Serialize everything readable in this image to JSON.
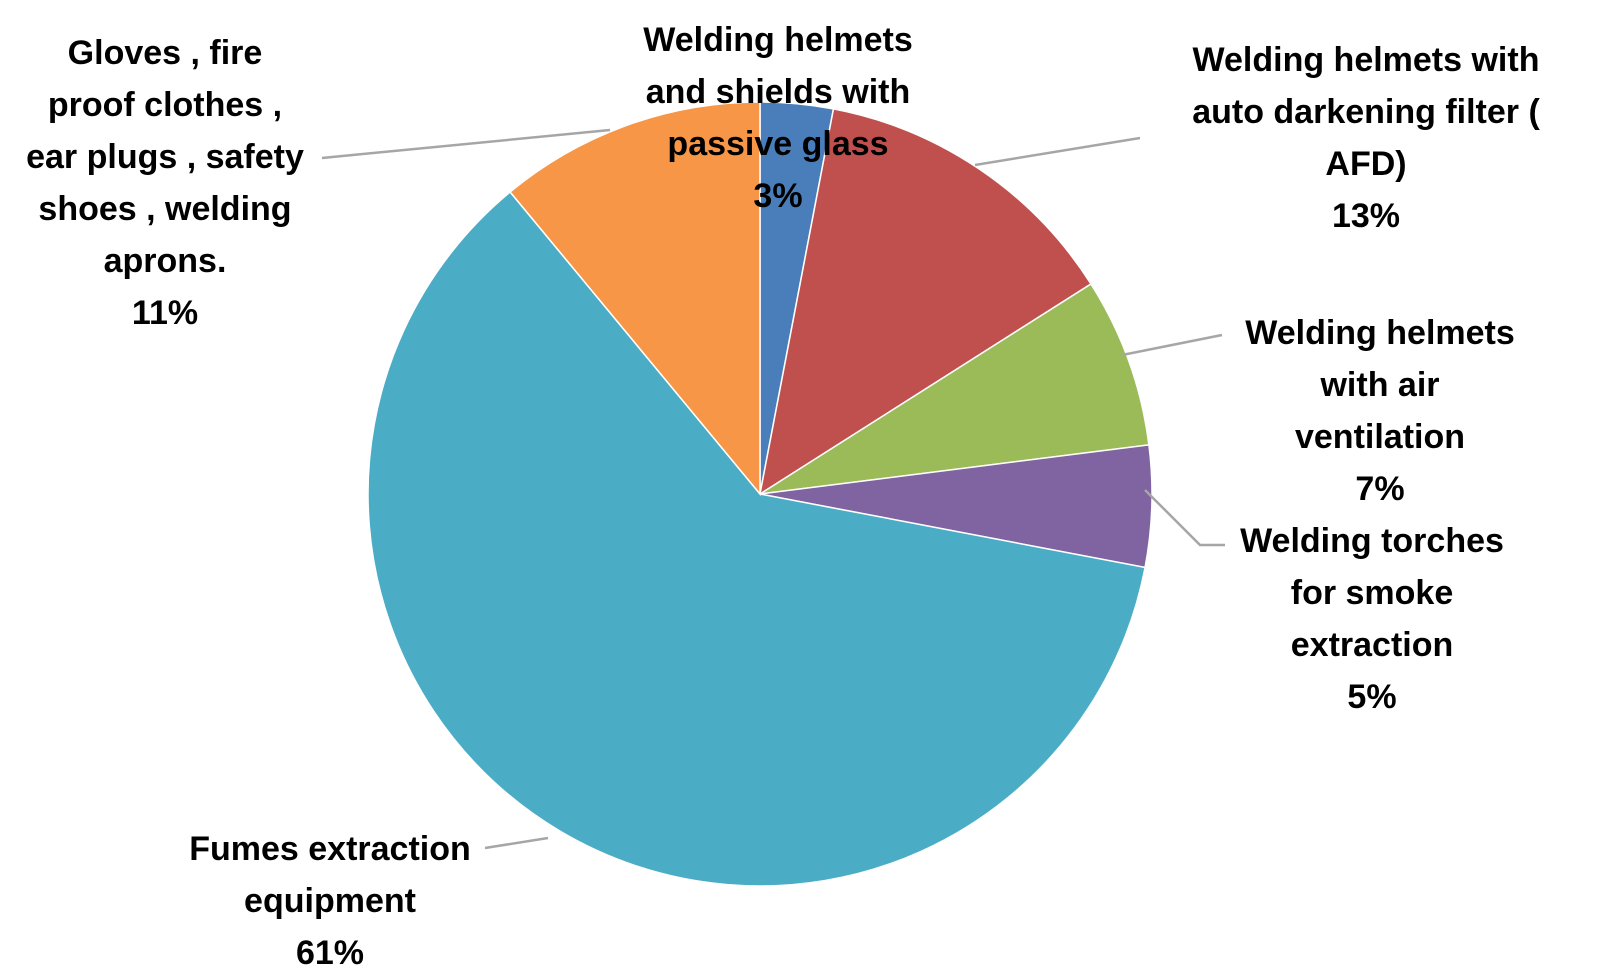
{
  "chart_data": {
    "type": "pie",
    "title": "",
    "start_angle_deg": 0,
    "direction": "clockwise",
    "legend": "none (data labels beside slices)",
    "slices": [
      {
        "lines": [
          "Welding helmets",
          "and shields with",
          "passive glass"
        ],
        "value": 3,
        "value_label": "3%",
        "color": "#4a7ebb"
      },
      {
        "lines": [
          "Welding helmets with",
          "auto darkening filter (",
          "AFD)"
        ],
        "value": 13,
        "value_label": "13%",
        "color": "#c0504d"
      },
      {
        "lines": [
          "Welding helmets",
          "with air",
          "ventilation"
        ],
        "value": 7,
        "value_label": "7%",
        "color": "#9bbb59"
      },
      {
        "lines": [
          "Welding torches",
          "for smoke",
          "extraction"
        ],
        "value": 5,
        "value_label": "5%",
        "color": "#8064a2"
      },
      {
        "lines": [
          "Fumes extraction",
          "equipment"
        ],
        "value": 61,
        "value_label": "61%",
        "color": "#4bacc6"
      },
      {
        "lines": [
          "Gloves , fire",
          "proof clothes ,",
          "ear plugs , safety",
          "shoes , welding",
          "aprons."
        ],
        "value": 11,
        "value_label": "11%",
        "color": "#f79646"
      }
    ]
  }
}
